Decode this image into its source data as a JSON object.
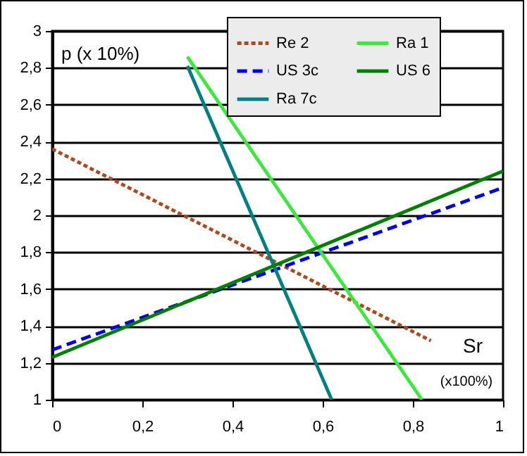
{
  "chart_data": {
    "type": "line",
    "xlabel": "Sr",
    "ylabel": "p (x 10%)",
    "annotations": [
      "(x100%)"
    ],
    "series": [
      {
        "name": "Re 2",
        "color": "#b0481c",
        "line_style": "dotted",
        "x": [
          0,
          0.84
        ],
        "values": [
          2.36,
          1.32
        ]
      },
      {
        "name": "US 3c",
        "color": "#0000e6",
        "line_style": "dashed",
        "x": [
          0,
          1
        ],
        "values": [
          1.27,
          2.15
        ]
      },
      {
        "name": "Ra 7c",
        "color": "#008080",
        "line_style": "solid",
        "x": [
          0.3,
          0.62
        ],
        "values": [
          2.81,
          1
        ]
      },
      {
        "name": "Ra 1",
        "color": "#3ce83c",
        "line_style": "solid",
        "x": [
          0.3,
          0.82
        ],
        "values": [
          2.86,
          1
        ]
      },
      {
        "name": "US 6",
        "color": "#008000",
        "line_style": "solid",
        "x": [
          0,
          1
        ],
        "values": [
          1.23,
          2.24
        ]
      }
    ],
    "xlim": [
      0,
      1
    ],
    "xticks": [
      0,
      {
        "value": 0.2,
        "label": "0,2"
      },
      {
        "value": 0.4,
        "label": "0,4"
      },
      {
        "value": 0.6,
        "label": "0,6"
      },
      {
        "value": 0.8,
        "label": "0,8"
      },
      1
    ],
    "ylim": [
      1,
      3
    ],
    "yticks": [
      1,
      {
        "value": 1.2,
        "label": "1,2"
      },
      {
        "value": 1.4,
        "label": "1,4"
      },
      {
        "value": 1.6,
        "label": "1,6"
      },
      {
        "value": 1.8,
        "label": "1,8"
      },
      2,
      {
        "value": 2.2,
        "label": "2,2"
      },
      {
        "value": 2.4,
        "label": "2,4"
      },
      {
        "value": 2.6,
        "label": "2,6"
      },
      {
        "value": 2.8,
        "label": "2,8"
      },
      3
    ],
    "grid": "y",
    "legend": "top right"
  }
}
